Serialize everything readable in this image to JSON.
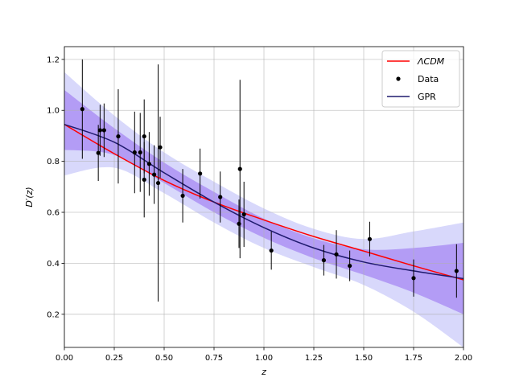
{
  "chart_data": {
    "type": "scatter",
    "title": "",
    "xlabel": "z",
    "ylabel": "D′(z)",
    "xlim": [
      0.0,
      2.0
    ],
    "ylim": [
      0.07,
      1.25
    ],
    "xticks": [
      0.0,
      0.25,
      0.5,
      0.75,
      1.0,
      1.25,
      1.5,
      1.75,
      2.0
    ],
    "xtick_labels": [
      "0.00",
      "0.25",
      "0.50",
      "0.75",
      "1.00",
      "1.25",
      "1.50",
      "1.75",
      "2.00"
    ],
    "yticks": [
      0.2,
      0.4,
      0.6,
      0.8,
      1.0,
      1.2
    ],
    "ytick_labels": [
      "0.2",
      "0.4",
      "0.6",
      "0.8",
      "1.0",
      "1.2"
    ],
    "grid": true,
    "legend": {
      "position": "upper right",
      "entries": [
        "ΛCDM",
        "Data",
        "GPR"
      ]
    },
    "colors": {
      "lcdm": "#ff0000",
      "data": "#000000",
      "gpr": "#1f1a6e",
      "band_1sigma": "#b39cf5",
      "band_2sigma": "#d8d8fb"
    },
    "series": [
      {
        "name": "ΛCDM",
        "kind": "line",
        "x": [
          0.0,
          0.25,
          0.5,
          0.75,
          1.0,
          1.25,
          1.5,
          1.75,
          2.0
        ],
        "y": [
          0.945,
          0.83,
          0.725,
          0.64,
          0.57,
          0.505,
          0.448,
          0.39,
          0.335
        ]
      },
      {
        "name": "Data",
        "kind": "errorbar",
        "points": [
          {
            "x": 0.09,
            "y": 1.005,
            "err": 0.195
          },
          {
            "x": 0.17,
            "y": 0.833,
            "err": 0.11
          },
          {
            "x": 0.179,
            "y": 0.922,
            "err": 0.1
          },
          {
            "x": 0.199,
            "y": 0.922,
            "err": 0.105
          },
          {
            "x": 0.27,
            "y": 0.898,
            "err": 0.185
          },
          {
            "x": 0.352,
            "y": 0.835,
            "err": 0.16
          },
          {
            "x": 0.38,
            "y": 0.835,
            "err": 0.155
          },
          {
            "x": 0.4,
            "y": 0.898,
            "err": 0.145
          },
          {
            "x": 0.4,
            "y": 0.728,
            "err": 0.148
          },
          {
            "x": 0.425,
            "y": 0.79,
            "err": 0.125
          },
          {
            "x": 0.45,
            "y": 0.748,
            "err": 0.115
          },
          {
            "x": 0.47,
            "y": 0.715,
            "err": 0.465
          },
          {
            "x": 0.48,
            "y": 0.855,
            "err": 0.12
          },
          {
            "x": 0.593,
            "y": 0.665,
            "err": 0.105
          },
          {
            "x": 0.68,
            "y": 0.752,
            "err": 0.098
          },
          {
            "x": 0.781,
            "y": 0.66,
            "err": 0.1
          },
          {
            "x": 0.875,
            "y": 0.555,
            "err": 0.095
          },
          {
            "x": 0.88,
            "y": 0.77,
            "err": 0.35
          },
          {
            "x": 0.9,
            "y": 0.592,
            "err": 0.128
          },
          {
            "x": 1.037,
            "y": 0.45,
            "err": 0.075
          },
          {
            "x": 1.3,
            "y": 0.412,
            "err": 0.06
          },
          {
            "x": 1.363,
            "y": 0.435,
            "err": 0.095
          },
          {
            "x": 1.43,
            "y": 0.39,
            "err": 0.06
          },
          {
            "x": 1.53,
            "y": 0.495,
            "err": 0.068
          },
          {
            "x": 1.75,
            "y": 0.342,
            "err": 0.073
          },
          {
            "x": 1.965,
            "y": 0.37,
            "err": 0.105
          }
        ]
      },
      {
        "name": "GPR",
        "kind": "line",
        "x": [
          0.0,
          0.25,
          0.5,
          0.75,
          1.0,
          1.25,
          1.5,
          1.75,
          2.0
        ],
        "y": [
          0.945,
          0.875,
          0.755,
          0.64,
          0.54,
          0.46,
          0.405,
          0.37,
          0.34
        ],
        "band_1sigma": {
          "x": [
            0.0,
            0.25,
            0.5,
            0.75,
            1.0,
            1.25,
            1.5,
            1.75,
            2.0
          ],
          "lower": [
            0.845,
            0.825,
            0.715,
            0.6,
            0.5,
            0.42,
            0.355,
            0.285,
            0.2
          ],
          "upper": [
            1.08,
            0.93,
            0.795,
            0.68,
            0.575,
            0.498,
            0.455,
            0.46,
            0.48
          ]
        },
        "band_2sigma": {
          "x": [
            0.0,
            0.25,
            0.5,
            0.75,
            1.0,
            1.25,
            1.5,
            1.75,
            2.0
          ],
          "lower": [
            0.745,
            0.775,
            0.675,
            0.56,
            0.46,
            0.385,
            0.315,
            0.21,
            0.07
          ],
          "upper": [
            1.15,
            0.98,
            0.835,
            0.72,
            0.615,
            0.535,
            0.495,
            0.525,
            0.56
          ]
        }
      }
    ]
  }
}
